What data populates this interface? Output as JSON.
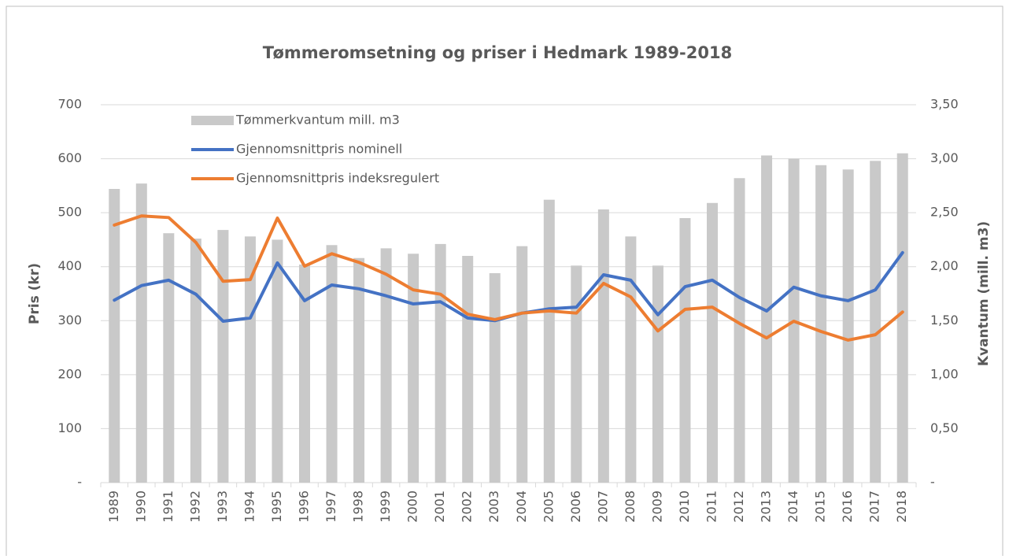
{
  "chart_data": {
    "type": "bar_line",
    "title": "Tømmeromsetning og priser i Hedmark 1989-2018",
    "y_label": "Pris (kr)",
    "y2_label": "Kvantum (mill. m3)",
    "categories": [
      "1989",
      "1990",
      "1991",
      "1992",
      "1993",
      "1994",
      "1995",
      "1996",
      "1997",
      "1998",
      "1999",
      "2000",
      "2001",
      "2002",
      "2003",
      "2004",
      "2005",
      "2006",
      "2007",
      "2008",
      "2009",
      "2010",
      "2011",
      "2012",
      "2013",
      "2014",
      "2015",
      "2016",
      "2017",
      "2018"
    ],
    "series": [
      {
        "name": "Tømmerkvantum mill. m3",
        "type": "bar",
        "axis": "y2",
        "color": "#c9c9c9",
        "values": [
          2.72,
          2.77,
          2.31,
          2.26,
          2.34,
          2.28,
          2.25,
          2.02,
          2.2,
          2.08,
          2.17,
          2.12,
          2.21,
          2.1,
          1.94,
          2.19,
          2.62,
          2.01,
          2.53,
          2.28,
          2.01,
          2.45,
          2.59,
          2.82,
          3.03,
          3.0,
          2.94,
          2.9,
          2.98,
          3.05
        ]
      },
      {
        "name": "Gjennomsnittpris nominell",
        "type": "line",
        "color": "#4472c4",
        "values": [
          338,
          365,
          375,
          349,
          299,
          305,
          407,
          337,
          366,
          359,
          346,
          331,
          335,
          305,
          300,
          314,
          322,
          325,
          385,
          375,
          311,
          363,
          375,
          343,
          318,
          362,
          346,
          337,
          357,
          426
        ]
      },
      {
        "name": "Gjennomsnittpris indeksregulert",
        "type": "line",
        "color": "#ed7d31",
        "values": [
          477,
          494,
          491,
          445,
          373,
          376,
          490,
          401,
          424,
          408,
          386,
          357,
          349,
          312,
          302,
          314,
          318,
          314,
          369,
          344,
          281,
          321,
          325,
          295,
          268,
          299,
          280,
          264,
          274,
          316
        ]
      }
    ],
    "ylim": [
      0,
      700
    ],
    "yticks": [
      {
        "value": 0,
        "label": "-"
      },
      100,
      200,
      300,
      400,
      500,
      600,
      700
    ],
    "y2lim": [
      0,
      3.5
    ],
    "y2ticks": [
      {
        "value": 0,
        "label": "-"
      },
      {
        "value": 0.5,
        "label": "0,50"
      },
      {
        "value": 1,
        "label": "1,00"
      },
      {
        "value": 1.5,
        "label": "1,50"
      },
      {
        "value": 2,
        "label": "2,00"
      },
      {
        "value": 2.5,
        "label": "2,50"
      },
      {
        "value": 3,
        "label": "3,00"
      },
      {
        "value": 3.5,
        "label": "3,50"
      }
    ],
    "grid": true,
    "legend": "top-left"
  }
}
